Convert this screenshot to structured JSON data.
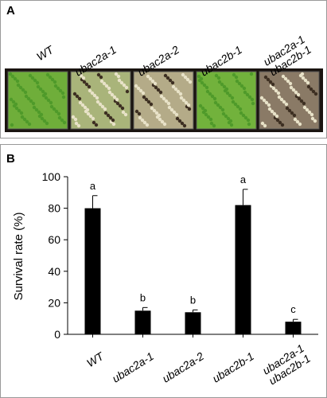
{
  "panel_a": {
    "label": "A",
    "labels": [
      "WT",
      "ubac2a-1",
      "ubac2a-2",
      "ubac2b-1",
      "ubac2a-1\nubac2b-1"
    ]
  },
  "chart_data": {
    "type": "bar",
    "panel_label": "B",
    "y_label": "Survival rate (%)",
    "categories": [
      "WT",
      "ubac2a-1",
      "ubac2a-2",
      "ubac2b-1",
      "ubac2a-1\nubac2b-1"
    ],
    "values": [
      80,
      15,
      14,
      82,
      8
    ],
    "errors": [
      8,
      2,
      1.5,
      10,
      1.5
    ],
    "annotations": [
      "a",
      "b",
      "b",
      "a",
      "c"
    ],
    "color": "#000000",
    "ylim": [
      0,
      100
    ],
    "yticks": [
      0,
      20,
      40,
      60,
      80,
      100
    ]
  }
}
